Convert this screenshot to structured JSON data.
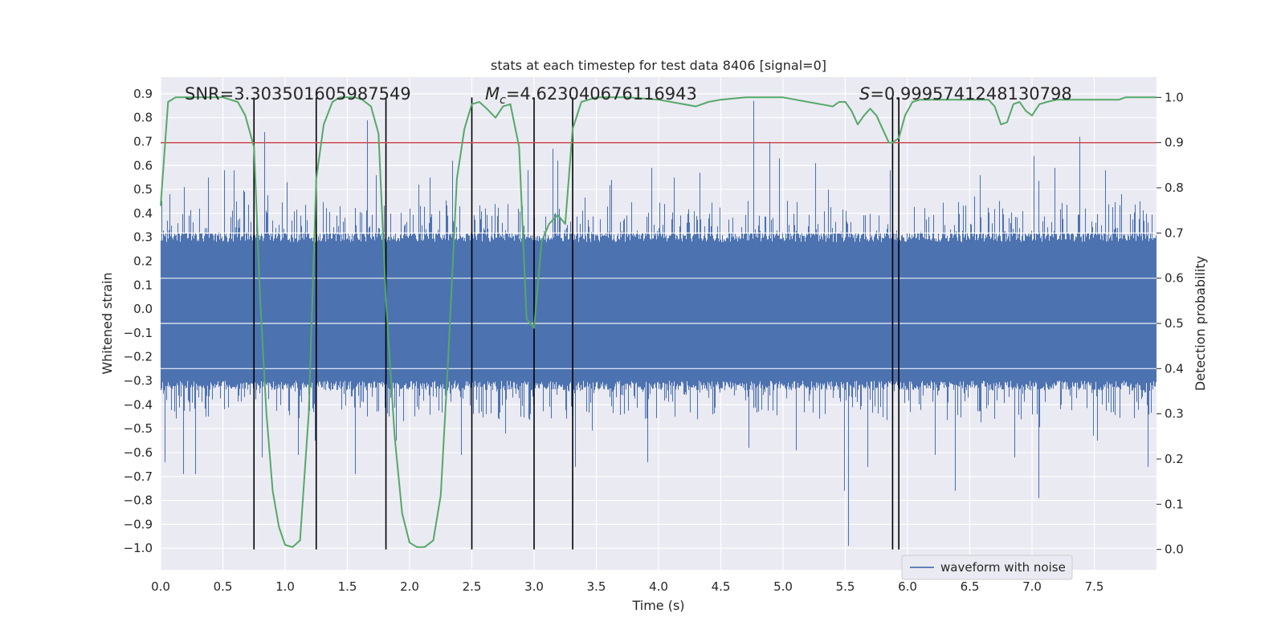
{
  "chart_data": {
    "type": "line",
    "title": "stats at each timestep for test data 8406 [signal=0]",
    "xlabel": "Time (s)",
    "ylabel": "Whitened strain",
    "y2label": "Detection probability",
    "xlim": [
      0.0,
      8.0
    ],
    "ylim": [
      -1.09,
      0.97
    ],
    "y2lim": [
      -0.045,
      1.045
    ],
    "x_ticks": [
      0.0,
      0.5,
      1.0,
      1.5,
      2.0,
      2.5,
      3.0,
      3.5,
      4.0,
      4.5,
      5.0,
      5.5,
      6.0,
      6.5,
      7.0,
      7.5
    ],
    "x_tick_labels": [
      "0.0",
      "0.5",
      "1.0",
      "1.5",
      "2.0",
      "2.5",
      "3.0",
      "3.5",
      "4.0",
      "4.5",
      "5.0",
      "5.5",
      "6.0",
      "6.5",
      "7.0",
      "7.5"
    ],
    "y_ticks": [
      0.9,
      0.8,
      0.7,
      0.6,
      0.5,
      0.4,
      0.3,
      0.2,
      0.1,
      0.0,
      -0.1,
      -0.2,
      -0.3,
      -0.4,
      -0.5,
      -0.6,
      -0.7,
      -0.8,
      -0.9,
      -1.0
    ],
    "y_tick_labels": [
      "0.9",
      "0.8",
      "0.7",
      "0.6",
      "0.5",
      "0.4",
      "0.3",
      "0.2",
      "0.1",
      "0.0",
      "−0.1",
      "−0.2",
      "−0.3",
      "−0.4",
      "−0.5",
      "−0.6",
      "−0.7",
      "−0.8",
      "−0.9",
      "−1.0"
    ],
    "y2_ticks": [
      0.0,
      0.1,
      0.2,
      0.3,
      0.4,
      0.5,
      0.6,
      0.7,
      0.8,
      0.9,
      1.0
    ],
    "y2_tick_labels": [
      "0.0",
      "0.1",
      "0.2",
      "0.3",
      "0.4",
      "0.5",
      "0.6",
      "0.7",
      "0.8",
      "0.9",
      "1.0"
    ],
    "grid": true,
    "legend": {
      "placement": "lower-right",
      "entries": [
        "waveform with noise"
      ]
    },
    "annotations": {
      "snr": "SNR=3.303501605987549",
      "mc_symbol": "M",
      "mc_subscript": "c",
      "mc_value": "=4.623040676116943",
      "s_symbol": "S",
      "s_value": "=0.9995741248130798"
    },
    "threshold": {
      "value": 0.9,
      "axis": "y2",
      "color": "#c44e52"
    },
    "vertical_lines_x": [
      0.75,
      1.25,
      1.81,
      2.5,
      3.0,
      3.31,
      5.88,
      5.93
    ],
    "waveform": {
      "name": "waveform with noise",
      "color": "#4c72b0",
      "axis": "y",
      "band_rms": 0.21,
      "seed": 8406,
      "spikes": [
        {
          "x": 0.03,
          "y": -0.64
        },
        {
          "x": 0.07,
          "y": 0.48
        },
        {
          "x": 0.19,
          "y": 0.51
        },
        {
          "x": 0.18,
          "y": -0.69
        },
        {
          "x": 0.28,
          "y": -0.69
        },
        {
          "x": 0.38,
          "y": 0.55
        },
        {
          "x": 0.51,
          "y": 0.58
        },
        {
          "x": 0.59,
          "y": 0.58
        },
        {
          "x": 0.67,
          "y": 0.49
        },
        {
          "x": 0.83,
          "y": 0.74
        },
        {
          "x": 0.81,
          "y": -0.62
        },
        {
          "x": 1.01,
          "y": 0.53
        },
        {
          "x": 1.1,
          "y": -0.61
        },
        {
          "x": 1.24,
          "y": -0.55
        },
        {
          "x": 1.44,
          "y": 0.43
        },
        {
          "x": 1.56,
          "y": -0.69
        },
        {
          "x": 1.66,
          "y": 0.79
        },
        {
          "x": 1.73,
          "y": 0.56
        },
        {
          "x": 1.89,
          "y": -0.55
        },
        {
          "x": 2.07,
          "y": 0.52
        },
        {
          "x": 2.16,
          "y": 0.55
        },
        {
          "x": 2.34,
          "y": 0.62
        },
        {
          "x": 2.41,
          "y": -0.61
        },
        {
          "x": 2.77,
          "y": -0.52
        },
        {
          "x": 2.95,
          "y": 0.58
        },
        {
          "x": 3.15,
          "y": 0.67
        },
        {
          "x": 3.19,
          "y": 0.62
        },
        {
          "x": 3.33,
          "y": -0.66
        },
        {
          "x": 3.62,
          "y": 0.54
        },
        {
          "x": 3.94,
          "y": 0.59
        },
        {
          "x": 3.91,
          "y": -0.64
        },
        {
          "x": 4.12,
          "y": 0.55
        },
        {
          "x": 4.33,
          "y": 0.57
        },
        {
          "x": 4.76,
          "y": 0.87
        },
        {
          "x": 4.72,
          "y": -0.58
        },
        {
          "x": 4.89,
          "y": 0.7
        },
        {
          "x": 4.97,
          "y": 0.63
        },
        {
          "x": 5.1,
          "y": -0.59
        },
        {
          "x": 5.26,
          "y": 0.61
        },
        {
          "x": 5.52,
          "y": -0.99
        },
        {
          "x": 5.49,
          "y": -0.76
        },
        {
          "x": 5.68,
          "y": -0.66
        },
        {
          "x": 5.86,
          "y": 0.58
        },
        {
          "x": 6.22,
          "y": -0.61
        },
        {
          "x": 6.38,
          "y": -0.76
        },
        {
          "x": 6.58,
          "y": 0.56
        },
        {
          "x": 6.86,
          "y": -0.62
        },
        {
          "x": 7.05,
          "y": -0.79
        },
        {
          "x": 7.01,
          "y": 0.64
        },
        {
          "x": 7.18,
          "y": 0.59
        },
        {
          "x": 7.38,
          "y": 0.72
        },
        {
          "x": 7.52,
          "y": -0.55
        },
        {
          "x": 7.59,
          "y": 0.58
        },
        {
          "x": 7.93,
          "y": -0.66
        }
      ]
    },
    "probability": {
      "color": "#55a868",
      "axis": "y2",
      "x": [
        0.0,
        0.06,
        0.12,
        0.25,
        0.5,
        0.62,
        0.68,
        0.75,
        0.8,
        0.85,
        0.9,
        0.95,
        1.0,
        1.06,
        1.12,
        1.19,
        1.25,
        1.31,
        1.38,
        1.44,
        1.5,
        1.56,
        1.62,
        1.69,
        1.75,
        1.81,
        1.88,
        1.94,
        2.0,
        2.06,
        2.12,
        2.19,
        2.25,
        2.31,
        2.38,
        2.44,
        2.5,
        2.56,
        2.62,
        2.69,
        2.75,
        2.81,
        2.88,
        2.94,
        3.0,
        3.06,
        3.12,
        3.19,
        3.25,
        3.31,
        3.38,
        3.44,
        3.5,
        3.6,
        3.75,
        4.0,
        4.1,
        4.3,
        4.4,
        4.5,
        4.7,
        5.0,
        5.1,
        5.3,
        5.4,
        5.45,
        5.5,
        5.55,
        5.6,
        5.65,
        5.7,
        5.75,
        5.8,
        5.85,
        5.88,
        5.93,
        5.98,
        6.04,
        6.1,
        6.15,
        6.25,
        6.5,
        6.65,
        6.7,
        6.75,
        6.8,
        6.85,
        6.9,
        6.95,
        7.0,
        7.06,
        7.12,
        7.2,
        7.3,
        7.5,
        7.7,
        7.75,
        8.0
      ],
      "y": [
        0.76,
        0.99,
        1.0,
        1.0,
        1.0,
        0.99,
        0.96,
        0.89,
        0.55,
        0.3,
        0.13,
        0.05,
        0.01,
        0.005,
        0.02,
        0.3,
        0.82,
        0.94,
        0.99,
        1.0,
        1.0,
        1.0,
        0.995,
        0.98,
        0.92,
        0.55,
        0.25,
        0.08,
        0.015,
        0.005,
        0.005,
        0.02,
        0.12,
        0.42,
        0.82,
        0.93,
        0.985,
        0.99,
        0.975,
        0.955,
        0.98,
        0.985,
        0.89,
        0.51,
        0.49,
        0.68,
        0.72,
        0.74,
        0.72,
        0.93,
        0.99,
        0.995,
        1.0,
        1.0,
        1.0,
        0.995,
        0.99,
        0.98,
        0.99,
        0.995,
        1.0,
        1.0,
        0.995,
        0.985,
        0.98,
        0.99,
        0.99,
        0.97,
        0.94,
        0.96,
        0.975,
        0.96,
        0.93,
        0.9,
        0.9,
        0.91,
        0.96,
        0.99,
        0.995,
        0.995,
        0.995,
        0.995,
        0.995,
        0.98,
        0.94,
        0.945,
        0.985,
        0.99,
        0.97,
        0.96,
        0.985,
        0.99,
        0.995,
        0.995,
        0.995,
        0.995,
        1.0,
        1.0
      ]
    }
  }
}
